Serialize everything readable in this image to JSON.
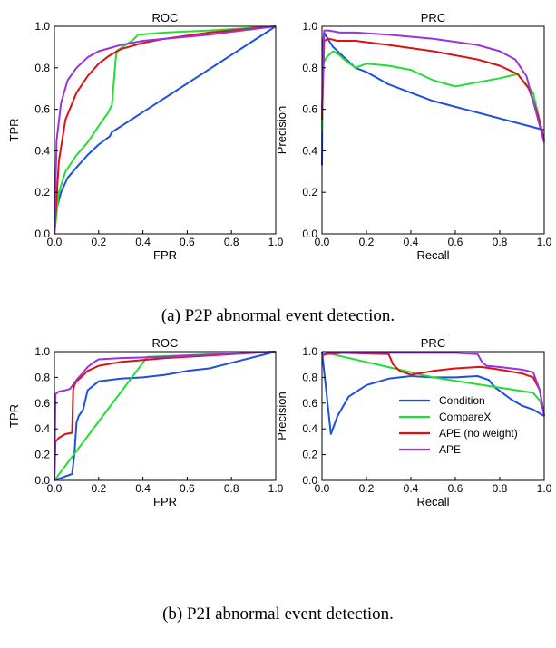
{
  "captions": {
    "top": "(a) P2P abnormal event detection.",
    "bottom": "(b) P2I abnormal event detection."
  },
  "colors": {
    "Condition": "#1f4fe0",
    "CompareX": "#22dd33",
    "APE (no weight)": "#dd1111",
    "APE": "#9933dd"
  },
  "chart_data": [
    {
      "type": "line",
      "title": "ROC",
      "xlabel": "FPR",
      "ylabel": "TPR",
      "xlim": [
        0,
        1
      ],
      "ylim": [
        0,
        1
      ],
      "xticks": [
        "0.0",
        "0.2",
        "0.4",
        "0.6",
        "0.8",
        "1.0"
      ],
      "yticks": [
        "0.0",
        "0.2",
        "0.4",
        "0.6",
        "0.8",
        "1.0"
      ],
      "series": [
        {
          "name": "Condition",
          "x": [
            0,
            0.01,
            0.03,
            0.06,
            0.1,
            0.15,
            0.2,
            0.25,
            0.26,
            1.0
          ],
          "y": [
            0,
            0.12,
            0.2,
            0.27,
            0.32,
            0.38,
            0.43,
            0.47,
            0.49,
            1.0
          ]
        },
        {
          "name": "CompareX",
          "x": [
            0,
            0.02,
            0.05,
            0.1,
            0.15,
            0.2,
            0.24,
            0.26,
            0.28,
            0.35,
            0.38,
            0.5,
            0.7,
            1.0
          ],
          "y": [
            0,
            0.2,
            0.3,
            0.38,
            0.44,
            0.52,
            0.58,
            0.62,
            0.88,
            0.93,
            0.96,
            0.97,
            0.98,
            1.0
          ]
        },
        {
          "name": "APE (no weight)",
          "x": [
            0,
            0.02,
            0.05,
            0.1,
            0.15,
            0.2,
            0.25,
            0.3,
            0.4,
            0.5,
            0.7,
            1.0
          ],
          "y": [
            0,
            0.35,
            0.55,
            0.68,
            0.76,
            0.82,
            0.86,
            0.89,
            0.92,
            0.94,
            0.97,
            1.0
          ]
        },
        {
          "name": "APE",
          "x": [
            0,
            0.01,
            0.03,
            0.06,
            0.1,
            0.15,
            0.2,
            0.3,
            0.4,
            0.5,
            0.7,
            1.0
          ],
          "y": [
            0,
            0.45,
            0.63,
            0.74,
            0.8,
            0.85,
            0.88,
            0.91,
            0.93,
            0.94,
            0.96,
            1.0
          ]
        }
      ]
    },
    {
      "type": "line",
      "title": "PRC",
      "xlabel": "Recall",
      "ylabel": "Precision",
      "xlim": [
        0,
        1
      ],
      "ylim": [
        0,
        1
      ],
      "xticks": [
        "0.0",
        "0.2",
        "0.4",
        "0.6",
        "0.8",
        "1.0"
      ],
      "yticks": [
        "0.0",
        "0.2",
        "0.4",
        "0.6",
        "0.8",
        "1.0"
      ],
      "series": [
        {
          "name": "Condition",
          "x": [
            0,
            0.003,
            0.01,
            0.02,
            0.05,
            0.1,
            0.15,
            0.2,
            0.3,
            0.4,
            0.5,
            1.0
          ],
          "y": [
            0.33,
            0.9,
            0.97,
            0.95,
            0.9,
            0.85,
            0.8,
            0.78,
            0.72,
            0.68,
            0.64,
            0.5
          ]
        },
        {
          "name": "CompareX",
          "x": [
            0,
            0.005,
            0.02,
            0.05,
            0.08,
            0.1,
            0.15,
            0.2,
            0.3,
            0.4,
            0.5,
            0.6,
            0.7,
            0.8,
            0.88,
            0.95,
            1.0
          ],
          "y": [
            0.5,
            0.82,
            0.85,
            0.88,
            0.86,
            0.84,
            0.8,
            0.82,
            0.81,
            0.79,
            0.74,
            0.71,
            0.73,
            0.75,
            0.77,
            0.68,
            0.45
          ]
        },
        {
          "name": "APE (no weight)",
          "x": [
            0,
            0.01,
            0.03,
            0.07,
            0.15,
            0.3,
            0.5,
            0.7,
            0.8,
            0.88,
            0.93,
            0.97,
            1.0
          ],
          "y": [
            0.55,
            0.93,
            0.94,
            0.93,
            0.93,
            0.91,
            0.88,
            0.84,
            0.81,
            0.77,
            0.7,
            0.58,
            0.45
          ]
        },
        {
          "name": "APE",
          "x": [
            0,
            0.01,
            0.03,
            0.08,
            0.15,
            0.3,
            0.5,
            0.7,
            0.8,
            0.87,
            0.92,
            0.96,
            1.0
          ],
          "y": [
            0.6,
            0.98,
            0.98,
            0.97,
            0.97,
            0.96,
            0.94,
            0.91,
            0.88,
            0.84,
            0.76,
            0.6,
            0.44
          ]
        }
      ]
    },
    {
      "type": "line",
      "title": "ROC",
      "xlabel": "FPR",
      "ylabel": "TPR",
      "xlim": [
        0,
        1
      ],
      "ylim": [
        0,
        1
      ],
      "xticks": [
        "0.0",
        "0.2",
        "0.4",
        "0.6",
        "0.8",
        "1.0"
      ],
      "yticks": [
        "0.0",
        "0.2",
        "0.4",
        "0.6",
        "0.8",
        "1.0"
      ],
      "series": [
        {
          "name": "Condition",
          "x": [
            0,
            0.08,
            0.09,
            0.1,
            0.11,
            0.13,
            0.15,
            0.2,
            0.25,
            0.3,
            0.4,
            0.5,
            0.6,
            0.7,
            1.0
          ],
          "y": [
            0,
            0.05,
            0.2,
            0.45,
            0.5,
            0.55,
            0.7,
            0.77,
            0.78,
            0.79,
            0.8,
            0.82,
            0.85,
            0.87,
            1.0
          ]
        },
        {
          "name": "CompareX",
          "x": [
            0,
            0.42,
            1.0
          ],
          "y": [
            0,
            0.96,
            1.0
          ]
        },
        {
          "name": "APE (no weight)",
          "x": [
            0,
            0.005,
            0.02,
            0.05,
            0.08,
            0.085,
            0.09,
            0.1,
            0.12,
            0.15,
            0.2,
            0.3,
            0.5,
            1.0
          ],
          "y": [
            0,
            0.3,
            0.33,
            0.36,
            0.37,
            0.7,
            0.74,
            0.77,
            0.8,
            0.85,
            0.89,
            0.92,
            0.95,
            1.0
          ]
        },
        {
          "name": "APE",
          "x": [
            0,
            0.005,
            0.02,
            0.05,
            0.07,
            0.1,
            0.12,
            0.15,
            0.18,
            0.2,
            0.3,
            0.5,
            1.0
          ],
          "y": [
            0,
            0.67,
            0.69,
            0.7,
            0.71,
            0.78,
            0.82,
            0.88,
            0.92,
            0.94,
            0.95,
            0.96,
            1.0
          ]
        }
      ]
    },
    {
      "type": "line",
      "title": "PRC",
      "xlabel": "Recall",
      "ylabel": "Precision",
      "xlim": [
        0,
        1
      ],
      "ylim": [
        0,
        1
      ],
      "xticks": [
        "0.0",
        "0.2",
        "0.4",
        "0.6",
        "0.8",
        "1.0"
      ],
      "yticks": [
        "0.0",
        "0.2",
        "0.4",
        "0.6",
        "0.8",
        "1.0"
      ],
      "legend": "lower-right",
      "series": [
        {
          "name": "Condition",
          "x": [
            0,
            0.04,
            0.07,
            0.12,
            0.2,
            0.3,
            0.4,
            0.5,
            0.6,
            0.7,
            0.75,
            0.78,
            0.82,
            0.85,
            0.9,
            0.95,
            1.0
          ],
          "y": [
            1.0,
            0.36,
            0.5,
            0.65,
            0.74,
            0.79,
            0.81,
            0.8,
            0.8,
            0.81,
            0.78,
            0.72,
            0.67,
            0.63,
            0.58,
            0.55,
            0.5
          ]
        },
        {
          "name": "CompareX",
          "x": [
            0,
            0.02,
            0.5,
            0.95,
            0.98,
            1.0
          ],
          "y": [
            0.98,
            0.99,
            0.8,
            0.68,
            0.62,
            0.52
          ]
        },
        {
          "name": "APE (no weight)",
          "x": [
            0,
            0.02,
            0.1,
            0.3,
            0.32,
            0.35,
            0.4,
            0.5,
            0.6,
            0.7,
            0.72,
            0.8,
            0.9,
            0.95,
            0.98,
            1.0
          ],
          "y": [
            0.97,
            0.98,
            0.99,
            0.98,
            0.9,
            0.85,
            0.82,
            0.85,
            0.87,
            0.88,
            0.88,
            0.86,
            0.83,
            0.8,
            0.7,
            0.5
          ]
        },
        {
          "name": "APE",
          "x": [
            0,
            0.02,
            0.2,
            0.4,
            0.6,
            0.7,
            0.72,
            0.74,
            0.8,
            0.9,
            0.95,
            0.98,
            1.0
          ],
          "y": [
            0.97,
            0.99,
            0.99,
            0.99,
            0.99,
            0.98,
            0.92,
            0.89,
            0.88,
            0.86,
            0.84,
            0.7,
            0.5
          ]
        }
      ]
    }
  ]
}
